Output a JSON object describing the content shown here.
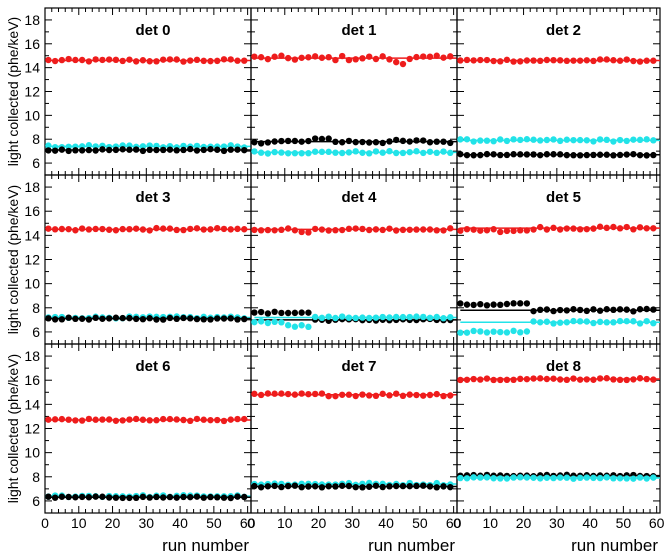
{
  "chart_data": {
    "type": "scatter",
    "layout": "3x3 grid of panels with shared axes",
    "ylabel": "light collected (phe/keV)",
    "xlabel": "run  number",
    "xlim": [
      0,
      61
    ],
    "ylim": [
      5,
      19
    ],
    "x_ticks": [
      0,
      10,
      20,
      30,
      40,
      50,
      60
    ],
    "y_ticks": [
      6,
      8,
      10,
      12,
      14,
      16,
      18
    ],
    "grid": false,
    "legend": "none",
    "colors": {
      "red": "#ee1c1c",
      "black": "#000000",
      "cyan": "#22e3e8"
    },
    "panels": [
      {
        "title": "det 0",
        "series": [
          {
            "color": "red",
            "mean": 14.6,
            "spread": 0.12,
            "segments": []
          },
          {
            "color": "cyan",
            "mean": 7.4,
            "spread": 0.1,
            "segments": []
          },
          {
            "color": "black",
            "mean": 7.1,
            "spread": 0.08,
            "segments": []
          }
        ]
      },
      {
        "title": "det 1",
        "series": [
          {
            "color": "red",
            "mean": 14.8,
            "spread": 0.2,
            "segments": [
              [
                43,
                46,
                14.5
              ]
            ]
          },
          {
            "color": "black",
            "mean": 7.8,
            "spread": 0.15,
            "segments": [
              [
                18,
                24,
                8.0
              ]
            ]
          },
          {
            "color": "cyan",
            "mean": 6.9,
            "spread": 0.1,
            "segments": []
          }
        ]
      },
      {
        "title": "det 2",
        "series": [
          {
            "color": "red",
            "mean": 14.6,
            "spread": 0.1,
            "segments": []
          },
          {
            "color": "cyan",
            "mean": 7.9,
            "spread": 0.1,
            "segments": []
          },
          {
            "color": "black",
            "mean": 6.7,
            "spread": 0.06,
            "segments": []
          }
        ]
      },
      {
        "title": "det 3",
        "series": [
          {
            "color": "red",
            "mean": 14.5,
            "spread": 0.1,
            "segments": []
          },
          {
            "color": "cyan",
            "mean": 7.2,
            "spread": 0.08,
            "segments": []
          },
          {
            "color": "black",
            "mean": 7.1,
            "spread": 0.08,
            "segments": []
          }
        ]
      },
      {
        "title": "det 4",
        "series": [
          {
            "color": "red",
            "mean": 14.5,
            "spread": 0.1,
            "segments": [
              [
                15,
                17,
                14.2
              ]
            ]
          },
          {
            "color": "black",
            "mean": 7.0,
            "spread": 0.08,
            "segments": [
              [
                1,
                8,
                7.6
              ],
              [
                9,
                17,
                7.6
              ]
            ]
          },
          {
            "color": "cyan",
            "mean": 7.2,
            "spread": 0.08,
            "segments": [
              [
                1,
                9,
                6.8
              ],
              [
                10,
                17,
                6.5
              ]
            ]
          }
        ]
      },
      {
        "title": "det 5",
        "series": [
          {
            "color": "red",
            "mean": 14.6,
            "spread": 0.12,
            "segments": [
              [
                1,
                22,
                14.4
              ]
            ]
          },
          {
            "color": "black",
            "mean": 7.8,
            "spread": 0.1,
            "segments": [
              [
                1,
                22,
                8.3
              ]
            ]
          },
          {
            "color": "cyan",
            "mean": 6.8,
            "spread": 0.1,
            "segments": [
              [
                1,
                22,
                6.0
              ]
            ]
          }
        ]
      },
      {
        "title": "det 6",
        "series": [
          {
            "color": "red",
            "mean": 12.7,
            "spread": 0.1,
            "segments": []
          },
          {
            "color": "cyan",
            "mean": 6.4,
            "spread": 0.08,
            "segments": []
          },
          {
            "color": "black",
            "mean": 6.3,
            "spread": 0.06,
            "segments": []
          }
        ]
      },
      {
        "title": "det 7",
        "series": [
          {
            "color": "red",
            "mean": 14.8,
            "spread": 0.12,
            "segments": []
          },
          {
            "color": "cyan",
            "mean": 7.4,
            "spread": 0.1,
            "segments": []
          },
          {
            "color": "black",
            "mean": 7.2,
            "spread": 0.08,
            "segments": []
          }
        ]
      },
      {
        "title": "det 8",
        "series": [
          {
            "color": "red",
            "mean": 16.1,
            "spread": 0.08,
            "segments": []
          },
          {
            "color": "black",
            "mean": 8.1,
            "spread": 0.06,
            "segments": []
          },
          {
            "color": "cyan",
            "mean": 7.9,
            "spread": 0.06,
            "segments": []
          }
        ]
      }
    ]
  }
}
